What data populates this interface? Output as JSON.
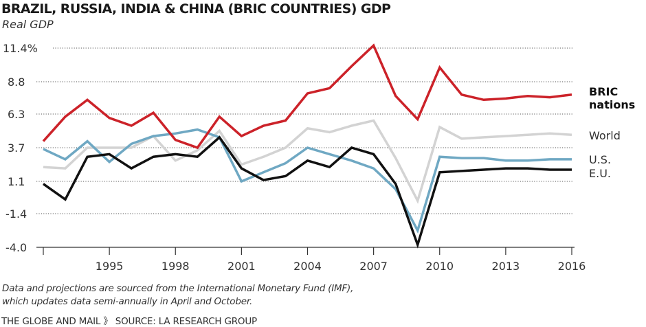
{
  "chart_data": {
    "type": "line",
    "title": "BRAZIL, RUSSIA, INDIA & CHINA (BRIC COUNTRIES) GDP",
    "subtitle": "Real GDP",
    "xlabel": "",
    "ylabel": "",
    "x": [
      1992,
      1993,
      1994,
      1995,
      1996,
      1997,
      1998,
      1999,
      2000,
      2001,
      2002,
      2003,
      2004,
      2005,
      2006,
      2007,
      2008,
      2009,
      2010,
      2011,
      2012,
      2013,
      2014,
      2015,
      2016
    ],
    "x_tick_labels": [
      "1995",
      "1998",
      "2001",
      "2004",
      "2007",
      "2010",
      "2013",
      "2016"
    ],
    "x_tick_values": [
      1995,
      1998,
      2001,
      2004,
      2007,
      2010,
      2013,
      2016
    ],
    "y_ticks": [
      11.4,
      8.8,
      6.3,
      3.7,
      1.1,
      -1.4,
      -4.0
    ],
    "y_tick_labels": [
      "11.4%",
      "8.8",
      "6.3",
      "3.7",
      "1.1",
      "-1.4",
      "-4.0"
    ],
    "ylim": [
      -4.0,
      11.4
    ],
    "xlim": [
      1992,
      2016
    ],
    "grid": "horizontal dotted",
    "legend": "right, inline labels",
    "series": [
      {
        "name": "World",
        "label": "World",
        "color": "#d3d3d3",
        "bold": false,
        "values": [
          2.2,
          2.1,
          3.7,
          3.7,
          3.7,
          4.6,
          2.7,
          3.5,
          5.0,
          2.4,
          3.0,
          3.7,
          5.2,
          4.9,
          5.4,
          5.8,
          2.9,
          -0.4,
          5.3,
          4.4,
          4.5,
          4.6,
          4.7,
          4.8,
          4.7
        ]
      },
      {
        "name": "U.S.",
        "label": "U.S.",
        "color": "#6fa8c3",
        "bold": false,
        "values": [
          3.6,
          2.8,
          4.2,
          2.6,
          4.0,
          4.6,
          4.8,
          5.1,
          4.5,
          1.1,
          1.8,
          2.5,
          3.7,
          3.2,
          2.7,
          2.1,
          0.5,
          -2.7,
          3.0,
          2.9,
          2.9,
          2.7,
          2.7,
          2.8,
          2.8
        ]
      },
      {
        "name": "E.U.",
        "label": "E.U.",
        "color": "#111111",
        "bold": false,
        "values": [
          0.9,
          -0.3,
          3.0,
          3.2,
          2.1,
          3.0,
          3.2,
          3.0,
          4.5,
          2.1,
          1.2,
          1.5,
          2.7,
          2.2,
          3.7,
          3.2,
          0.9,
          -3.8,
          1.8,
          1.9,
          2.0,
          2.1,
          2.1,
          2.0,
          2.0
        ]
      },
      {
        "name": "BRIC nations",
        "label_lines": [
          "BRIC",
          "nations"
        ],
        "color": "#cc2229",
        "bold": true,
        "values": [
          4.2,
          6.1,
          7.4,
          6.0,
          5.4,
          6.4,
          4.3,
          3.7,
          6.1,
          4.6,
          5.4,
          5.8,
          7.9,
          8.3,
          10.0,
          11.6,
          7.7,
          5.9,
          9.9,
          7.8,
          7.4,
          7.5,
          7.7,
          7.6,
          7.8
        ]
      }
    ]
  },
  "footer": {
    "note_line1": "Data and projections are sourced from the International Monetary Fund (IMF),",
    "note_line2": "which updates data semi-annually in April and October.",
    "credit": "THE GLOBE AND MAIL 》 SOURCE: LA RESEARCH GROUP"
  }
}
